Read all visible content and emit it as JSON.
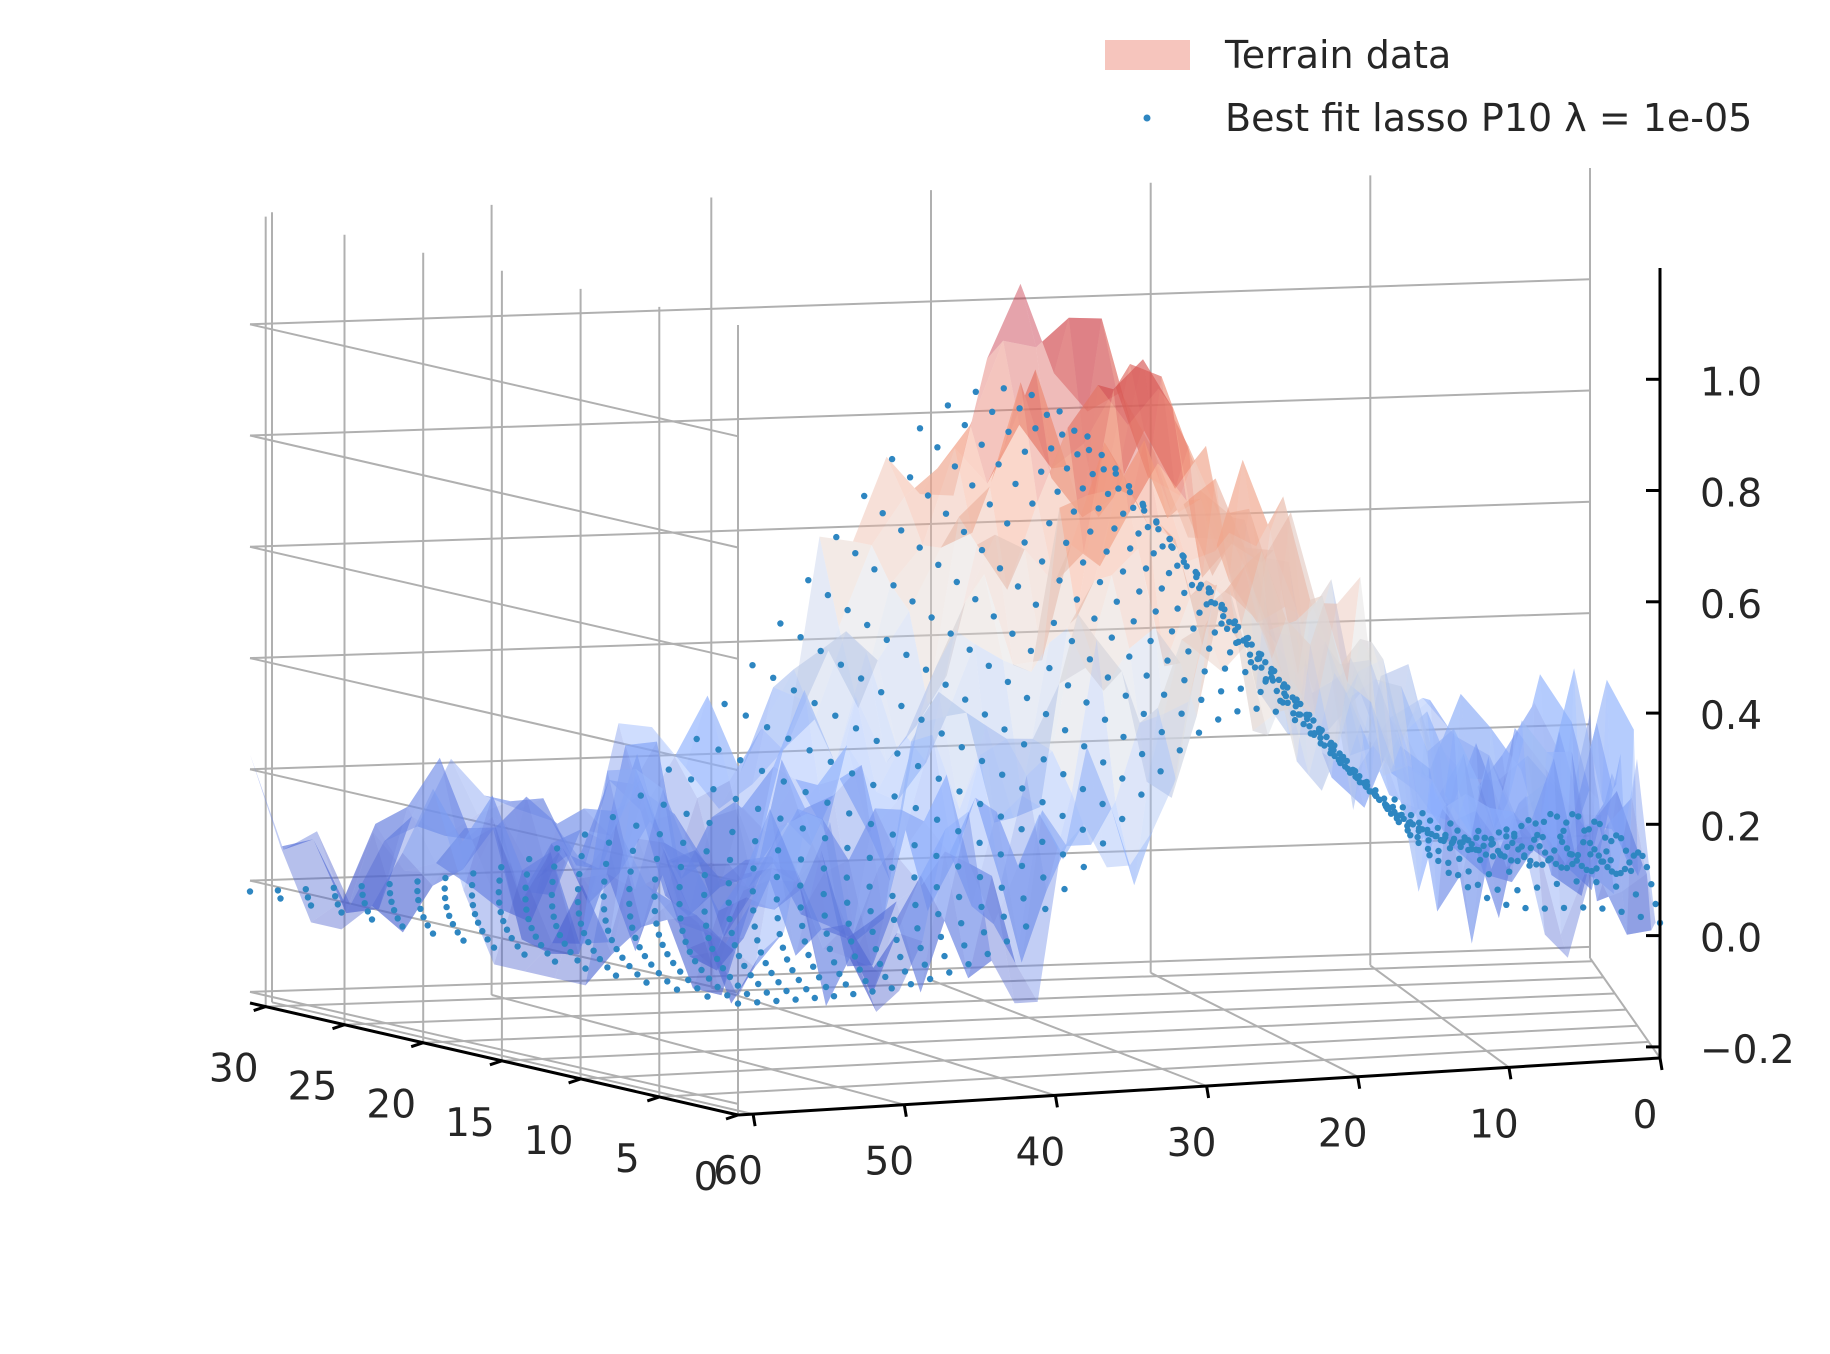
{
  "chart_data": {
    "type": "surface3d",
    "title": "",
    "xlabel": "",
    "ylabel": "",
    "zlabel": "",
    "x_ticks": [
      "0",
      "10",
      "20",
      "30",
      "40",
      "50",
      "60"
    ],
    "y_ticks": [
      "0",
      "5",
      "10",
      "15",
      "20",
      "25",
      "30"
    ],
    "z_ticks": [
      "−0.2",
      "0.0",
      "0.2",
      "0.4",
      "0.6",
      "0.8",
      "1.0"
    ],
    "xlim": [
      0,
      61
    ],
    "ylim": [
      0,
      31
    ],
    "zlim": [
      -0.22,
      1.2
    ],
    "grid": true,
    "legend_position": "top-right",
    "series": [
      {
        "name": "Terrain data",
        "kind": "surface",
        "legend_color": "#f6c5bd",
        "colormap": "coolwarm",
        "description_values": "noisy terrain heights, peaks near x=20-30 reaching about 1.0"
      },
      {
        "name": "Best fit lasso P10 λ = 1e-05",
        "kind": "scatter",
        "color": "#2e86c1",
        "grid_x_count": 49,
        "grid_y_count": 17,
        "model": "smooth polynomial fit, peak about 0.85 near x=27, edges near 0"
      }
    ]
  },
  "legend": {
    "terrain_label": "Terrain data",
    "fit_label": "Best fit lasso P10 λ = 1e-05"
  }
}
